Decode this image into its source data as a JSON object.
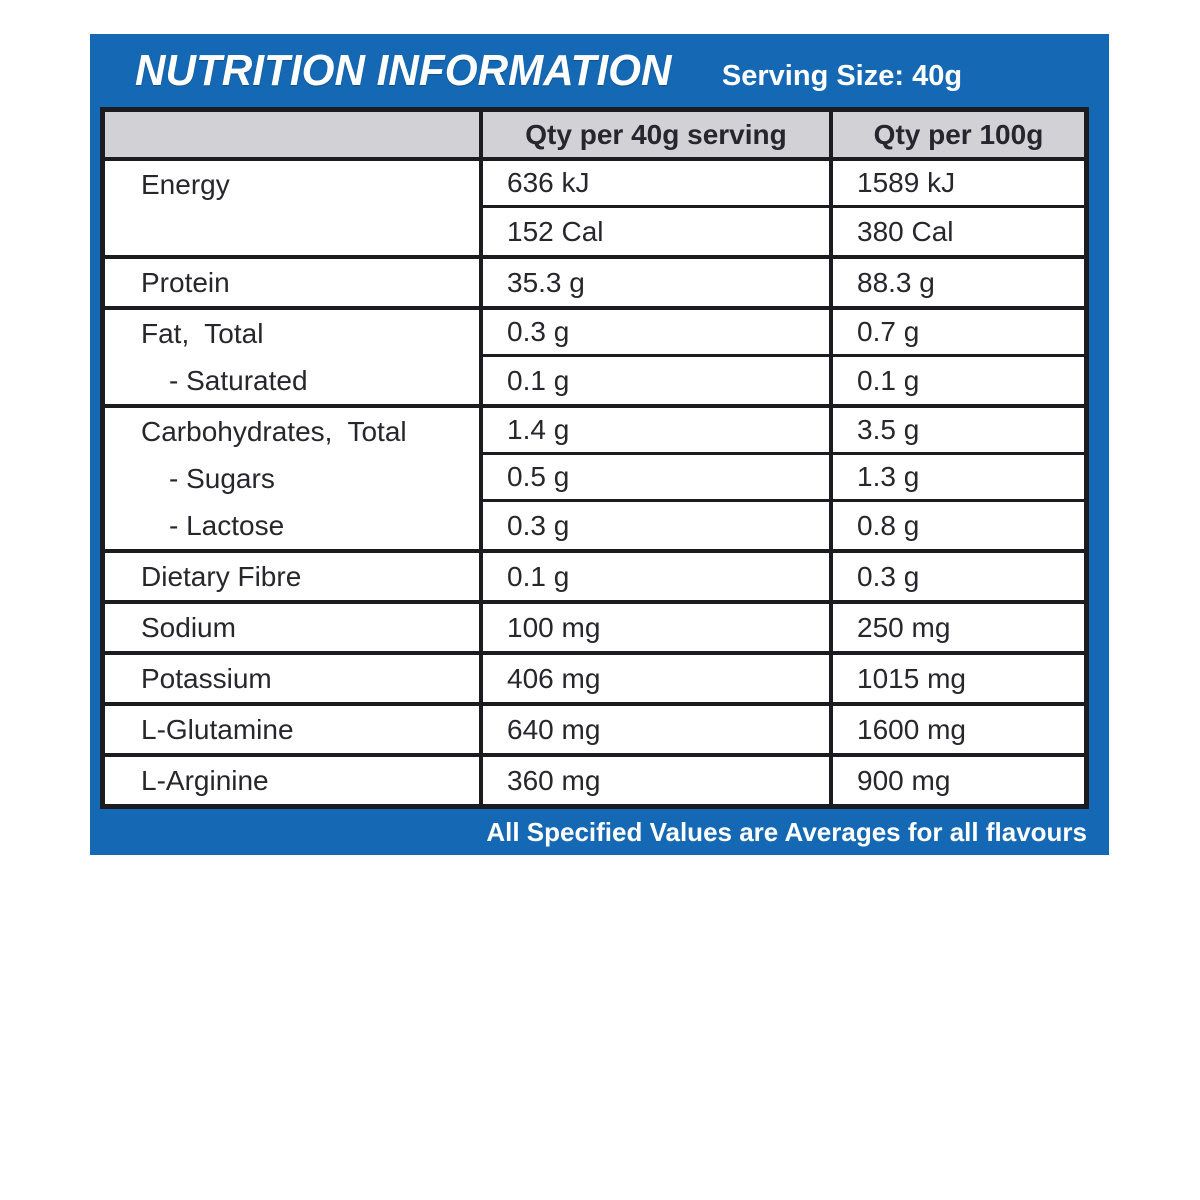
{
  "colors": {
    "panel_blue": "#1568b3",
    "header_gray": "#d2d1d5",
    "border_black": "#1b1b20",
    "text_dark": "#26262c",
    "text_white": "#ffffff"
  },
  "header": {
    "title": "NUTRITION INFORMATION",
    "serving_size": "Serving Size: 40g"
  },
  "table": {
    "column_headers": {
      "nutrient": "",
      "qty_per_serving": "Qty per 40g serving",
      "qty_per_100g": "Qty per 100g"
    },
    "groups": [
      {
        "name": "energy",
        "rows": [
          {
            "label": "Energy",
            "indent": false,
            "qty40": "636 kJ",
            "qty100": "1589 kJ"
          },
          {
            "label": "",
            "indent": false,
            "qty40": "152 Cal",
            "qty100": "380 Cal"
          }
        ]
      },
      {
        "name": "protein",
        "rows": [
          {
            "label": "Protein",
            "indent": false,
            "qty40": "35.3 g",
            "qty100": "88.3 g"
          }
        ]
      },
      {
        "name": "fat",
        "rows": [
          {
            "label": "Fat,  Total",
            "indent": false,
            "qty40": "0.3 g",
            "qty100": "0.7 g"
          },
          {
            "label": "- Saturated",
            "indent": true,
            "qty40": "0.1 g",
            "qty100": "0.1 g"
          }
        ]
      },
      {
        "name": "carbohydrates",
        "rows": [
          {
            "label": "Carbohydrates,  Total",
            "indent": false,
            "qty40": "1.4 g",
            "qty100": "3.5 g"
          },
          {
            "label": "- Sugars",
            "indent": true,
            "qty40": "0.5 g",
            "qty100": "1.3 g"
          },
          {
            "label": "- Lactose",
            "indent": true,
            "qty40": "0.3 g",
            "qty100": "0.8 g"
          }
        ]
      },
      {
        "name": "dietary-fibre",
        "rows": [
          {
            "label": "Dietary Fibre",
            "indent": false,
            "qty40": "0.1 g",
            "qty100": "0.3 g"
          }
        ]
      },
      {
        "name": "sodium",
        "rows": [
          {
            "label": "Sodium",
            "indent": false,
            "qty40": "100 mg",
            "qty100": "250 mg"
          }
        ]
      },
      {
        "name": "potassium",
        "rows": [
          {
            "label": "Potassium",
            "indent": false,
            "qty40": "406 mg",
            "qty100": "1015 mg"
          }
        ]
      },
      {
        "name": "l-glutamine",
        "rows": [
          {
            "label": "L-Glutamine",
            "indent": false,
            "qty40": "640 mg",
            "qty100": "1600 mg"
          }
        ]
      },
      {
        "name": "l-arginine",
        "rows": [
          {
            "label": "L-Arginine",
            "indent": false,
            "qty40": "360 mg",
            "qty100": "900 mg"
          }
        ]
      }
    ]
  },
  "footer": {
    "note": "All Specified Values are Averages for all flavours"
  }
}
